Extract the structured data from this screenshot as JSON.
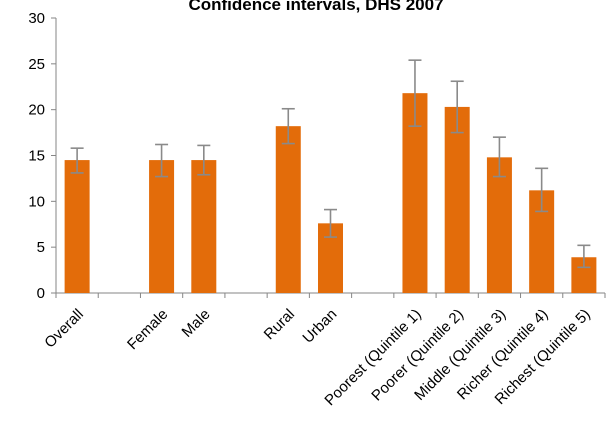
{
  "chart_data": {
    "type": "bar",
    "title": "Confidence intervals, DHS 2007",
    "xlabel": "",
    "ylabel": "",
    "ylim": [
      0,
      30
    ],
    "yticks": [
      0,
      5,
      10,
      15,
      20,
      25,
      30
    ],
    "grid": false,
    "bar_color": "#E36C0A",
    "error_color": "#8A8A8A",
    "slots": [
      "Overall",
      "",
      "Female",
      "Male",
      "",
      "Rural",
      "Urban",
      "",
      "Poorest (Quintile 1)",
      "Poorer (Quintile 2)",
      "Middle (Quintile 3)",
      "Richer (Quintile 4)",
      "Richest (Quintile 5)"
    ],
    "categories": [
      "Overall",
      "Female",
      "Male",
      "Rural",
      "Urban",
      "Poorest (Quintile 1)",
      "Poorer (Quintile 2)",
      "Middle (Quintile 3)",
      "Richer (Quintile 4)",
      "Richest (Quintile 5)"
    ],
    "values": [
      14.5,
      14.5,
      14.5,
      18.2,
      7.6,
      21.8,
      20.3,
      14.8,
      11.2,
      3.9
    ],
    "error_low": [
      13.1,
      12.7,
      12.9,
      16.3,
      6.1,
      18.2,
      17.5,
      12.7,
      8.9,
      2.8
    ],
    "error_high": [
      15.8,
      16.2,
      16.1,
      20.1,
      9.1,
      25.4,
      23.1,
      17.0,
      13.6,
      5.2
    ]
  }
}
